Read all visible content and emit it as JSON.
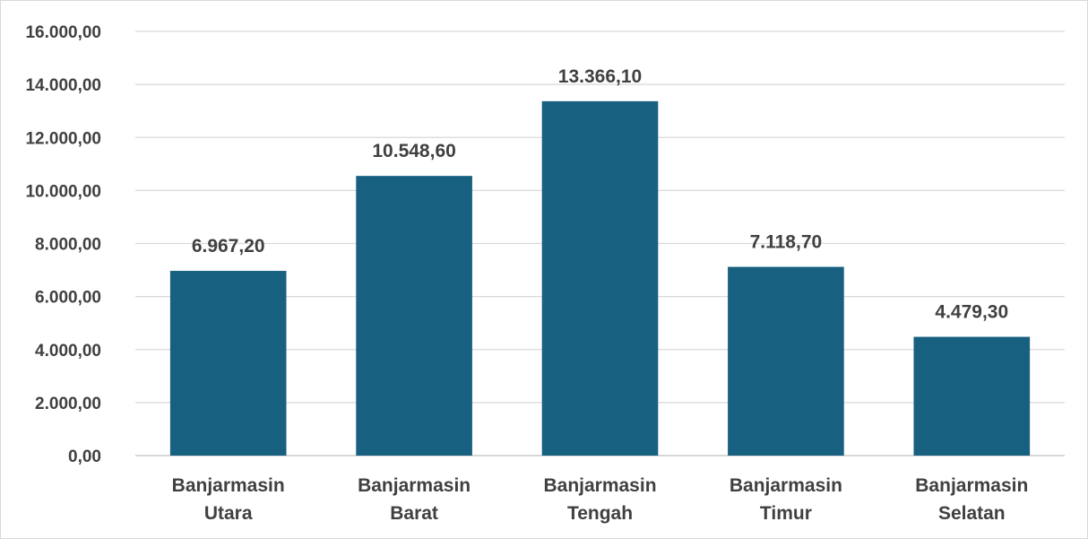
{
  "chart_data": {
    "type": "bar",
    "title": "",
    "xlabel": "",
    "ylabel": "",
    "categories": [
      [
        "Banjarmasin",
        "Utara"
      ],
      [
        "Banjarmasin",
        "Barat"
      ],
      [
        "Banjarmasin",
        "Tengah"
      ],
      [
        "Banjarmasin",
        "Timur"
      ],
      [
        "Banjarmasin",
        "Selatan"
      ]
    ],
    "values": [
      6967.2,
      10548.6,
      13366.1,
      7118.7,
      4479.3
    ],
    "value_labels": [
      "6.967,20",
      "10.548,60",
      "13.366,10",
      "7.118,70",
      "4.479,30"
    ],
    "ylim": [
      0,
      16000
    ],
    "y_ticks": [
      0,
      2000,
      4000,
      6000,
      8000,
      10000,
      12000,
      14000,
      16000
    ],
    "y_tick_labels": [
      "0,00",
      "2.000,00",
      "4.000,00",
      "6.000,00",
      "8.000,00",
      "10.000,00",
      "12.000,00",
      "14.000,00",
      "16.000,00"
    ],
    "grid": true,
    "legend": "none",
    "bar_color": "#17607f",
    "gridline_color": "#d9d9d9",
    "text_color": "#404040"
  }
}
